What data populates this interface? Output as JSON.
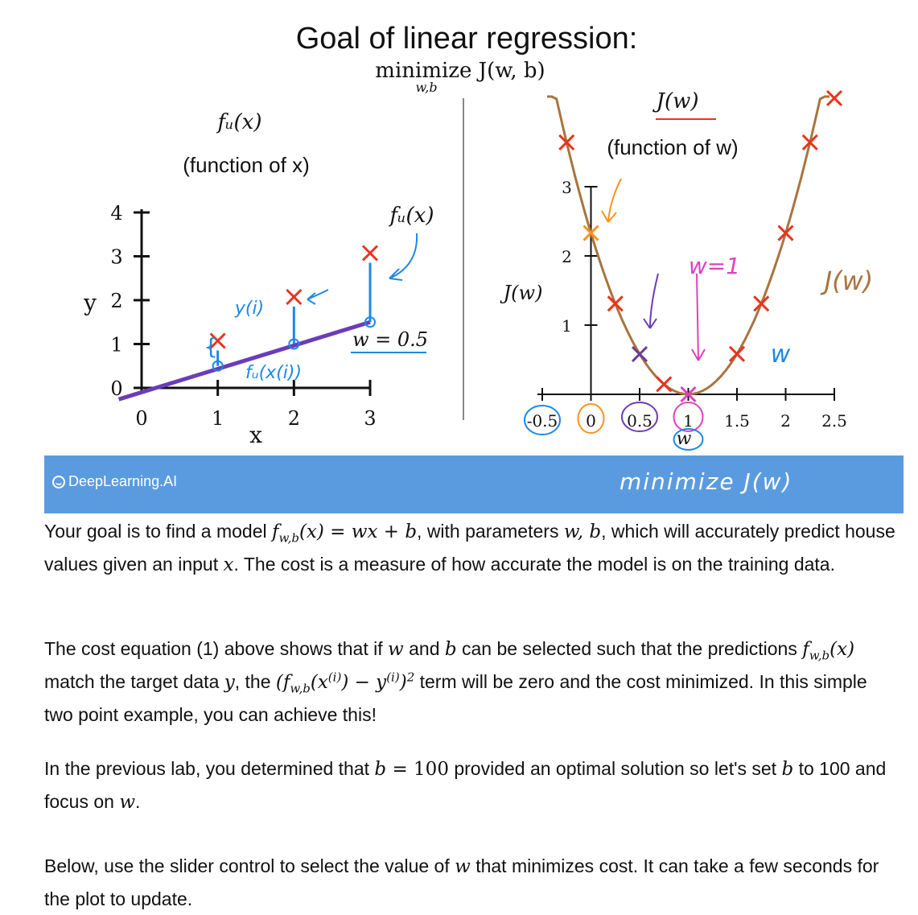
{
  "slide": {
    "title": "Goal of linear regression:",
    "objective": "minimize J(w, b)",
    "objective_sub": "w,b",
    "left_panel": {
      "function_label": "fᵤ(x)",
      "function_desc": "(function of x)",
      "line_label": "fᵤ(x)",
      "w_label": "w = 0.5",
      "xlabel": "x",
      "ylabel": "y",
      "x_ticks": [
        "0",
        "1",
        "2",
        "3"
      ],
      "y_ticks": [
        "0",
        "1",
        "2",
        "3",
        "4"
      ],
      "handwritten_y": "y(i)",
      "handwritten_f": "fᵤ(x(i))"
    },
    "right_panel": {
      "title": "J(w)",
      "desc": "(function of w)",
      "ylabel": "J(w)",
      "xlabel": "w",
      "x_ticks": [
        "-0.5",
        "0",
        "0.5",
        "1",
        "1.5",
        "2",
        "2.5"
      ],
      "y_ticks": [
        "1",
        "2",
        "3"
      ],
      "annotation_w1": "w=1",
      "annotation_jw": "J(w)",
      "annotation_w": "w"
    }
  },
  "chart_data": [
    {
      "type": "line",
      "title": "fᵤ(x) (function of x)",
      "xlabel": "x",
      "ylabel": "y",
      "xlim": [
        0,
        3
      ],
      "ylim": [
        0,
        4
      ],
      "points": [
        {
          "x": 1,
          "y": 1
        },
        {
          "x": 2,
          "y": 2
        },
        {
          "x": 3,
          "y": 3
        }
      ],
      "model_line": {
        "w": 0.5,
        "x": [
          -0.3,
          3
        ],
        "y": [
          -0.15,
          1.5
        ]
      },
      "prediction_points": [
        {
          "x": 1,
          "y": 0.5
        },
        {
          "x": 2,
          "y": 1
        },
        {
          "x": 3,
          "y": 1.5
        }
      ]
    },
    {
      "type": "line",
      "title": "J(w) (function of w)",
      "xlabel": "w",
      "ylabel": "J(w)",
      "xlim": [
        -0.5,
        2.5
      ],
      "ylim": [
        0,
        3
      ],
      "curve": "J(w) = 2.33 (w - 1)^2",
      "cost_points_red": [
        {
          "x": -0.25,
          "y": 3.64
        },
        {
          "x": 0.25,
          "y": 1.31
        },
        {
          "x": 0.75,
          "y": 0.146
        },
        {
          "x": 1.5,
          "y": 0.583
        },
        {
          "x": 1.75,
          "y": 1.31
        },
        {
          "x": 2.0,
          "y": 2.33
        },
        {
          "x": 2.25,
          "y": 3.64
        },
        {
          "x": 2.5,
          "y": 5.24
        }
      ],
      "highlighted_points": [
        {
          "x": 0,
          "y": 2.33,
          "color": "#f7941d"
        },
        {
          "x": 0.5,
          "y": 0.58,
          "color": "#6a3d9a"
        },
        {
          "x": 1,
          "y": 0,
          "color": "#e040c0"
        }
      ]
    }
  ],
  "banner": {
    "brand": "DeepLearning.AI",
    "note": "minimize J(w)"
  },
  "p1": {
    "a": "Your goal is to find a model ",
    "m1": "f",
    "m1sub": "w,b",
    "m1rest": "(x) = wx + b",
    "b": ", with parameters ",
    "m2": "w, b",
    "c": ", which will accurately predict house values given an input ",
    "m3": "x",
    "d": ". The cost is a measure of how accurate the model is on the training data."
  },
  "p2": {
    "a": "The cost equation (1) above shows that if ",
    "m1": "w",
    "b": " and ",
    "m2": "b",
    "c": " can be selected such that the predictions ",
    "m3": "f",
    "m3sub": "w,b",
    "m3rest": "(x)",
    "d": " match the target data ",
    "m4": "y",
    "e": ", the ",
    "m5a": "(f",
    "m5sub": "w,b",
    "m5b": "(x",
    "m5sup1": "(i)",
    "m5c": ") − y",
    "m5sup2": "(i)",
    "m5d": ")",
    "m5sup3": "2",
    "f": " term will be zero and the cost minimized. In this simple two point example, you can achieve this!"
  },
  "p3": {
    "a": "In the previous lab, you determined that ",
    "m1": "b",
    "m1eq": " = 100",
    "b": " provided an optimal solution so let's set ",
    "m2": "b",
    "c": " to 100 and focus on ",
    "m3": "w",
    "d": "."
  },
  "p4": {
    "a": "Below, use the slider control to select the value of ",
    "m1": "w",
    "b": " that minimizes cost. It can take a few seconds for the plot to update."
  },
  "colors": {
    "banner": "#5a9be0",
    "data_x": "#e8341c",
    "model_line": "#6a3db8",
    "curve": "#a8743f",
    "handwriting_blue": "#1e88e5",
    "handwriting_pink": "#e040c0",
    "handwriting_orange": "#f7941d"
  }
}
